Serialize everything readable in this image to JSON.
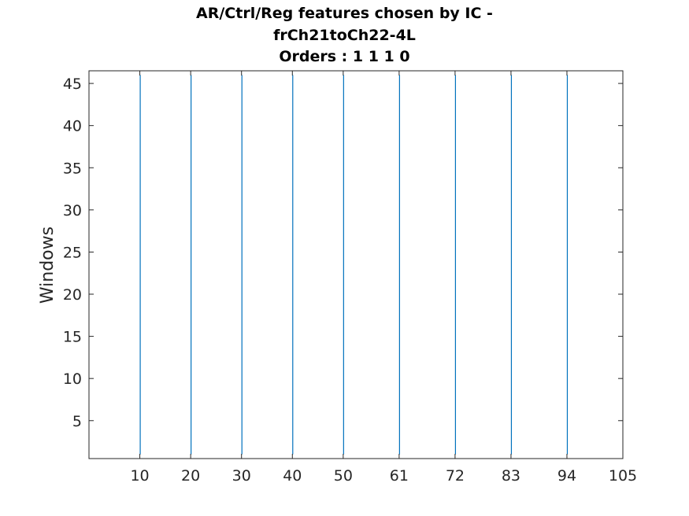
{
  "chart_data": {
    "type": "line",
    "title_lines": [
      "AR/Ctrl/Reg features chosen by IC -",
      "frCh21toCh22-4L",
      "Orders : 1 1 1 0"
    ],
    "xlabel": "",
    "ylabel": "Windows",
    "xlim": [
      0,
      105
    ],
    "ylim": [
      0.5,
      46.5
    ],
    "xticks": [
      10,
      20,
      30,
      40,
      50,
      61,
      72,
      83,
      94,
      105
    ],
    "yticks": [
      5,
      10,
      15,
      20,
      25,
      30,
      35,
      40,
      45
    ],
    "grid": false,
    "legend": "none",
    "series": [
      {
        "x_values": [
          10,
          20,
          30,
          40,
          50,
          61,
          72,
          83,
          94
        ],
        "y_range": [
          1,
          46
        ]
      }
    ],
    "colors": {
      "line": "#0072BD",
      "axis": "#262626",
      "background": "#ffffff"
    }
  }
}
